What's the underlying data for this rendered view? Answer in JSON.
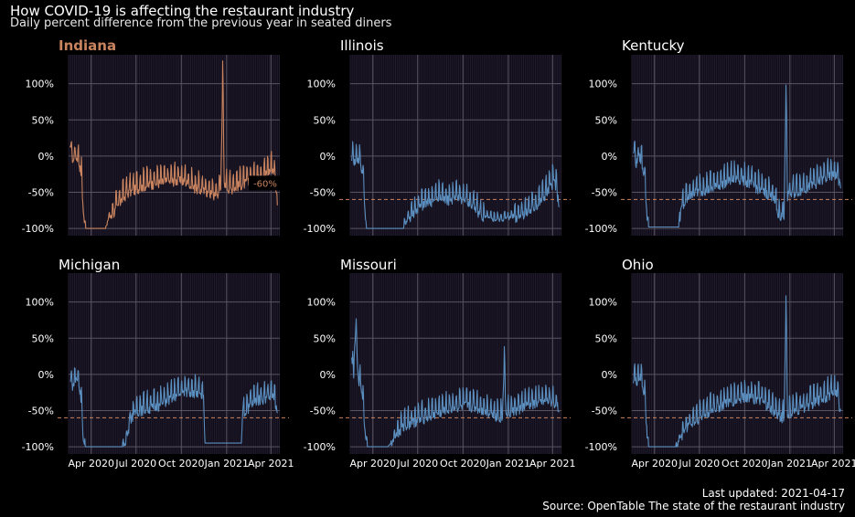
{
  "title": "How COVID-19 is affecting the restaurant industry",
  "subtitle": "Daily percent difference from the previous year in seated diners",
  "caption_updated": "Last updated: 2021-04-17",
  "caption_source": "Source: OpenTable The state of the restaurant industry",
  "colors": {
    "background": "#000000",
    "panel": "#0f0b18",
    "grid_major": "#5a5462",
    "grid_minor": "#221d2c",
    "highlight": "#c9845f",
    "other": "#5b8fc0",
    "reference": "#c9845f",
    "text": "#ffffff"
  },
  "chart_data": {
    "type": "line",
    "facets": [
      "Indiana",
      "Illinois",
      "Kentucky",
      "Michigan",
      "Missouri",
      "Ohio"
    ],
    "highlight_facet": "Indiana",
    "ylim": [
      -110,
      140
    ],
    "y_ticks": [
      -100,
      -50,
      0,
      50,
      100
    ],
    "y_tick_labels": [
      "-100%",
      "-50%",
      "0%",
      "50%",
      "100%"
    ],
    "x_ticks": [
      "Apr 2020",
      "Jul 2020",
      "Oct 2020",
      "Jan 2021",
      "Apr 2021"
    ],
    "reference_line": {
      "value": -60,
      "label": "-60%"
    },
    "series": [
      {
        "name": "Indiana",
        "points": [
          [
            "2020-02-18",
            15
          ],
          [
            "2020-02-24",
            0
          ],
          [
            "2020-03-02",
            5
          ],
          [
            "2020-03-08",
            -5
          ],
          [
            "2020-03-12",
            -20
          ],
          [
            "2020-03-15",
            -60
          ],
          [
            "2020-03-18",
            -90
          ],
          [
            "2020-03-22",
            -100
          ],
          [
            "2020-05-01",
            -100
          ],
          [
            "2020-05-04",
            -88
          ],
          [
            "2020-05-15",
            -75
          ],
          [
            "2020-06-01",
            -55
          ],
          [
            "2020-06-15",
            -45
          ],
          [
            "2020-07-01",
            -40
          ],
          [
            "2020-07-20",
            -35
          ],
          [
            "2020-08-10",
            -32
          ],
          [
            "2020-09-01",
            -30
          ],
          [
            "2020-09-20",
            -28
          ],
          [
            "2020-10-10",
            -30
          ],
          [
            "2020-10-25",
            -38
          ],
          [
            "2020-11-10",
            -42
          ],
          [
            "2020-11-25",
            -45
          ],
          [
            "2020-12-10",
            -50
          ],
          [
            "2020-12-20",
            -40
          ],
          [
            "2020-12-24",
            120
          ],
          [
            "2020-12-27",
            -35
          ],
          [
            "2021-01-10",
            -40
          ],
          [
            "2021-01-25",
            -35
          ],
          [
            "2021-02-10",
            -32
          ],
          [
            "2021-03-01",
            -28
          ],
          [
            "2021-03-20",
            -20
          ],
          [
            "2021-04-05",
            -10
          ],
          [
            "2021-04-10",
            -30
          ],
          [
            "2021-04-14",
            -55
          ]
        ]
      },
      {
        "name": "Illinois",
        "points": [
          [
            "2020-02-18",
            5
          ],
          [
            "2020-02-24",
            -2
          ],
          [
            "2020-03-02",
            2
          ],
          [
            "2020-03-08",
            -8
          ],
          [
            "2020-03-12",
            -20
          ],
          [
            "2020-03-15",
            -60
          ],
          [
            "2020-03-19",
            -100
          ],
          [
            "2020-06-01",
            -100
          ],
          [
            "2020-06-05",
            -92
          ],
          [
            "2020-06-20",
            -75
          ],
          [
            "2020-07-05",
            -65
          ],
          [
            "2020-07-25",
            -58
          ],
          [
            "2020-08-15",
            -52
          ],
          [
            "2020-09-01",
            -55
          ],
          [
            "2020-09-20",
            -52
          ],
          [
            "2020-10-05",
            -55
          ],
          [
            "2020-10-25",
            -68
          ],
          [
            "2020-11-15",
            -82
          ],
          [
            "2020-12-01",
            -85
          ],
          [
            "2020-12-20",
            -85
          ],
          [
            "2021-01-05",
            -82
          ],
          [
            "2021-01-20",
            -78
          ],
          [
            "2021-02-10",
            -72
          ],
          [
            "2021-03-01",
            -62
          ],
          [
            "2021-03-20",
            -45
          ],
          [
            "2021-04-05",
            -28
          ],
          [
            "2021-04-14",
            -60
          ]
        ]
      },
      {
        "name": "Kentucky",
        "points": [
          [
            "2020-02-18",
            12
          ],
          [
            "2020-02-24",
            -5
          ],
          [
            "2020-03-02",
            5
          ],
          [
            "2020-03-08",
            -8
          ],
          [
            "2020-03-12",
            -25
          ],
          [
            "2020-03-16",
            -70
          ],
          [
            "2020-03-20",
            -98
          ],
          [
            "2020-05-20",
            -98
          ],
          [
            "2020-05-24",
            -70
          ],
          [
            "2020-06-05",
            -55
          ],
          [
            "2020-06-20",
            -45
          ],
          [
            "2020-07-10",
            -42
          ],
          [
            "2020-08-01",
            -38
          ],
          [
            "2020-08-25",
            -30
          ],
          [
            "2020-09-15",
            -25
          ],
          [
            "2020-10-05",
            -30
          ],
          [
            "2020-10-25",
            -38
          ],
          [
            "2020-11-10",
            -45
          ],
          [
            "2020-11-28",
            -50
          ],
          [
            "2020-12-10",
            -80
          ],
          [
            "2020-12-20",
            -75
          ],
          [
            "2020-12-24",
            90
          ],
          [
            "2020-12-27",
            -50
          ],
          [
            "2021-01-10",
            -45
          ],
          [
            "2021-01-28",
            -40
          ],
          [
            "2021-02-15",
            -35
          ],
          [
            "2021-03-05",
            -28
          ],
          [
            "2021-03-25",
            -22
          ],
          [
            "2021-04-05",
            -20
          ],
          [
            "2021-04-14",
            -35
          ]
        ]
      },
      {
        "name": "Michigan",
        "points": [
          [
            "2020-02-18",
            -5
          ],
          [
            "2020-02-24",
            -10
          ],
          [
            "2020-03-02",
            0
          ],
          [
            "2020-03-08",
            -12
          ],
          [
            "2020-03-12",
            -30
          ],
          [
            "2020-03-16",
            -90
          ],
          [
            "2020-03-20",
            -100
          ],
          [
            "2020-06-01",
            -100
          ],
          [
            "2020-06-10",
            -92
          ],
          [
            "2020-06-20",
            -55
          ],
          [
            "2020-07-05",
            -45
          ],
          [
            "2020-07-25",
            -42
          ],
          [
            "2020-08-15",
            -38
          ],
          [
            "2020-09-05",
            -30
          ],
          [
            "2020-09-25",
            -22
          ],
          [
            "2020-10-15",
            -18
          ],
          [
            "2020-11-01",
            -20
          ],
          [
            "2020-11-15",
            -28
          ],
          [
            "2020-11-18",
            -95
          ],
          [
            "2021-01-31",
            -95
          ],
          [
            "2021-02-02",
            -50
          ],
          [
            "2021-02-15",
            -40
          ],
          [
            "2021-03-01",
            -30
          ],
          [
            "2021-03-20",
            -28
          ],
          [
            "2021-04-05",
            -22
          ],
          [
            "2021-04-14",
            -50
          ]
        ]
      },
      {
        "name": "Missouri",
        "points": [
          [
            "2020-02-18",
            25
          ],
          [
            "2020-02-22",
            5
          ],
          [
            "2020-02-26",
            70
          ],
          [
            "2020-03-02",
            0
          ],
          [
            "2020-03-08",
            -10
          ],
          [
            "2020-03-12",
            -30
          ],
          [
            "2020-03-16",
            -75
          ],
          [
            "2020-03-21",
            -100
          ],
          [
            "2020-05-01",
            -100
          ],
          [
            "2020-05-08",
            -95
          ],
          [
            "2020-05-20",
            -78
          ],
          [
            "2020-06-05",
            -65
          ],
          [
            "2020-06-25",
            -60
          ],
          [
            "2020-07-15",
            -55
          ],
          [
            "2020-08-05",
            -50
          ],
          [
            "2020-08-25",
            -45
          ],
          [
            "2020-09-15",
            -40
          ],
          [
            "2020-10-05",
            -38
          ],
          [
            "2020-10-25",
            -40
          ],
          [
            "2020-11-15",
            -45
          ],
          [
            "2020-12-01",
            -50
          ],
          [
            "2020-12-20",
            -55
          ],
          [
            "2020-12-24",
            30
          ],
          [
            "2020-12-27",
            -50
          ],
          [
            "2021-01-15",
            -45
          ],
          [
            "2021-02-05",
            -38
          ],
          [
            "2021-03-01",
            -35
          ],
          [
            "2021-03-25",
            -32
          ],
          [
            "2021-04-14",
            -40
          ]
        ]
      },
      {
        "name": "Ohio",
        "points": [
          [
            "2020-02-18",
            0
          ],
          [
            "2020-02-24",
            -5
          ],
          [
            "2020-03-02",
            2
          ],
          [
            "2020-03-08",
            -10
          ],
          [
            "2020-03-12",
            -25
          ],
          [
            "2020-03-16",
            -70
          ],
          [
            "2020-03-20",
            -100
          ],
          [
            "2020-05-15",
            -100
          ],
          [
            "2020-05-20",
            -90
          ],
          [
            "2020-06-01",
            -72
          ],
          [
            "2020-06-20",
            -60
          ],
          [
            "2020-07-10",
            -50
          ],
          [
            "2020-08-01",
            -42
          ],
          [
            "2020-08-25",
            -35
          ],
          [
            "2020-09-20",
            -28
          ],
          [
            "2020-10-10",
            -25
          ],
          [
            "2020-10-30",
            -30
          ],
          [
            "2020-11-20",
            -40
          ],
          [
            "2020-12-05",
            -50
          ],
          [
            "2020-12-20",
            -55
          ],
          [
            "2020-12-24",
            100
          ],
          [
            "2020-12-27",
            -50
          ],
          [
            "2021-01-15",
            -45
          ],
          [
            "2021-02-05",
            -38
          ],
          [
            "2021-03-01",
            -30
          ],
          [
            "2021-03-25",
            -22
          ],
          [
            "2021-04-05",
            -18
          ],
          [
            "2021-04-14",
            -45
          ]
        ]
      }
    ]
  }
}
